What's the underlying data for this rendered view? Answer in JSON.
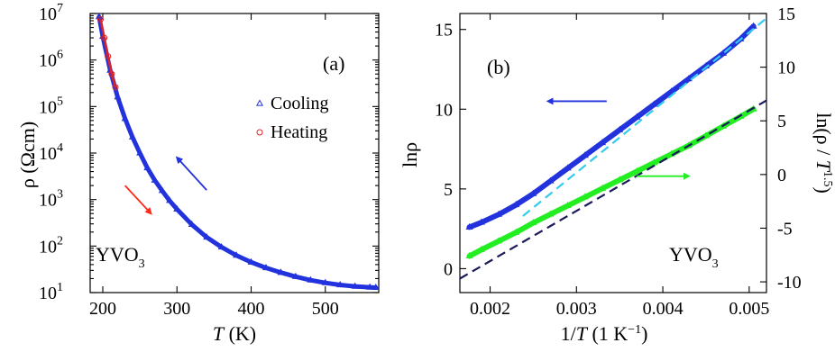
{
  "chart_data": [
    {
      "id": "a",
      "type": "scatter",
      "panel_label": "(a)",
      "xlabel_italic": "T",
      "xlabel_rest": " (K)",
      "ylabel": "ρ (Ωcm)",
      "xlim": [
        183,
        572
      ],
      "ylim": [
        10,
        10000000
      ],
      "yscale": "log",
      "xticks": [
        200,
        300,
        400,
        500
      ],
      "yticks": [
        {
          "value": 10,
          "base": "10",
          "exp": "1"
        },
        {
          "value": 100,
          "base": "10",
          "exp": "2"
        },
        {
          "value": 1000,
          "base": "10",
          "exp": "3"
        },
        {
          "value": 10000,
          "base": "10",
          "exp": "4"
        },
        {
          "value": 100000,
          "base": "10",
          "exp": "5"
        },
        {
          "value": 1000000,
          "base": "10",
          "exp": "6"
        },
        {
          "value": 10000000,
          "base": "10",
          "exp": "7"
        }
      ],
      "annotation_main": "YVO",
      "annotation_sub": "3",
      "legend_position": "center-right",
      "series": [
        {
          "name": "Cooling",
          "marker": "triangle",
          "color": "#2233dd",
          "x": [
            195,
            200,
            210,
            220,
            230,
            240,
            250,
            260,
            270,
            280,
            290,
            300,
            320,
            340,
            360,
            380,
            400,
            420,
            440,
            460,
            480,
            500,
            520,
            540,
            560,
            568
          ],
          "y": [
            8500000,
            3200000,
            600000,
            160000,
            55000,
            22000,
            10000,
            4800,
            2600,
            1550,
            950,
            620,
            290,
            155,
            95,
            63,
            45,
            34,
            27,
            22,
            18.5,
            16.2,
            14.6,
            13.6,
            13.0,
            12.8
          ]
        },
        {
          "name": "Heating",
          "marker": "circle",
          "color": "#dd2222",
          "x": [
            197,
            202,
            207,
            212,
            217
          ],
          "y": [
            7500000,
            3000000,
            1200000,
            500000,
            260000
          ]
        }
      ],
      "arrows": [
        {
          "color": "#2233dd",
          "from": [
            340,
            1600
          ],
          "to": [
            300,
            8000
          ]
        },
        {
          "color": "#ff2a1a",
          "from": [
            230,
            2000
          ],
          "to": [
            265,
            500
          ]
        }
      ]
    },
    {
      "id": "b",
      "type": "line",
      "panel_label": "(b)",
      "xlabel_main": "1/",
      "xlabel_italic": "T",
      "xlabel_rest": " (1 K",
      "xlabel_exp": "−1",
      "xlabel_close": ")",
      "ylabel_left": "lnρ",
      "ylabel_right_main": "ln(ρ / ",
      "ylabel_right_italic": "T",
      "ylabel_right_exp": "1.5",
      "ylabel_right_close": ")",
      "xlim": [
        0.00165,
        0.0052
      ],
      "ylim_left": [
        -1.5,
        16
      ],
      "ylim_right": [
        -11,
        15
      ],
      "xticks": [
        0.002,
        0.003,
        0.004,
        0.005
      ],
      "xtick_labels": [
        "0.002",
        "0.003",
        "0.004",
        "0.005"
      ],
      "yticks_left": [
        0,
        5,
        10,
        15
      ],
      "yticks_right": [
        -10,
        -5,
        0,
        5,
        10,
        15
      ],
      "annotation_main": "YVO",
      "annotation_sub": "3",
      "series": [
        {
          "name": "",
          "axis": "left",
          "marker": "triangle",
          "color": "#2233dd",
          "x": [
            0.00176,
            0.0019,
            0.0021,
            0.0023,
            0.0025,
            0.0027,
            0.0029,
            0.0031,
            0.0033,
            0.0035,
            0.0037,
            0.0039,
            0.0041,
            0.0043,
            0.0045,
            0.0047,
            0.0049,
            0.00505
          ],
          "y": [
            2.6,
            2.9,
            3.4,
            4.0,
            4.7,
            5.5,
            6.3,
            7.1,
            7.9,
            8.7,
            9.5,
            10.3,
            11.1,
            11.9,
            12.7,
            13.5,
            14.4,
            15.2
          ]
        },
        {
          "name": "",
          "axis": "right",
          "marker": "triangle",
          "color": "#22ee22",
          "x": [
            0.00176,
            0.0019,
            0.0021,
            0.0023,
            0.0025,
            0.0027,
            0.0029,
            0.0031,
            0.0033,
            0.0035,
            0.0037,
            0.0039,
            0.0041,
            0.0043,
            0.0045,
            0.0047,
            0.0049,
            0.00505
          ],
          "y": [
            -7.6,
            -7.0,
            -6.2,
            -5.4,
            -4.5,
            -3.7,
            -2.9,
            -2.1,
            -1.3,
            -0.5,
            0.3,
            1.1,
            1.9,
            2.7,
            3.6,
            4.5,
            5.4,
            6.1
          ]
        }
      ],
      "fit_lines": [
        {
          "axis": "left",
          "color": "#33ccee",
          "dash": "10,6",
          "x": [
            0.00238,
            0.0052
          ],
          "y": [
            3.3,
            15.7
          ]
        },
        {
          "axis": "right",
          "color": "#1a1a5a",
          "dash": "10,6",
          "x": [
            0.00165,
            0.0052
          ],
          "y": [
            -9.7,
            6.9
          ]
        }
      ],
      "arrows": [
        {
          "color": "#2233dd",
          "axis": "left",
          "from": [
            0.00335,
            10.5
          ],
          "to": [
            0.00267,
            10.5
          ]
        },
        {
          "color": "#22ee22",
          "axis": "left",
          "from": [
            0.0037,
            5.8
          ],
          "to": [
            0.0043,
            5.8
          ]
        }
      ]
    }
  ]
}
